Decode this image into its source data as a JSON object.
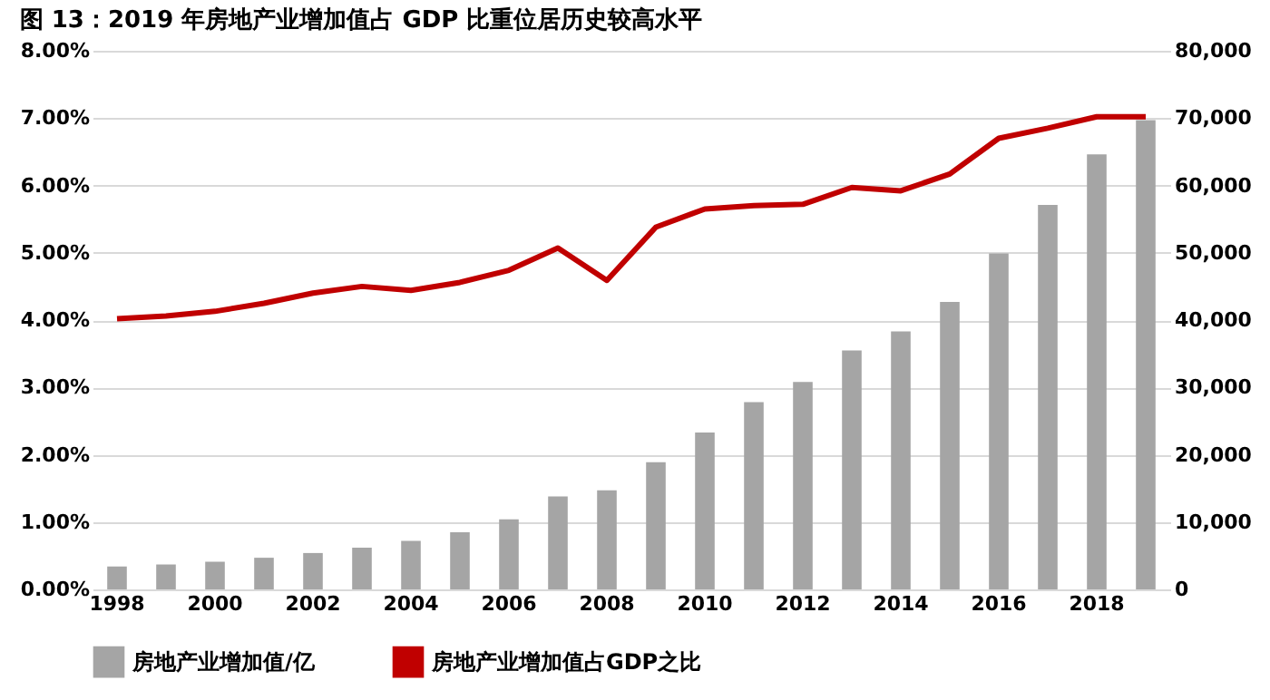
{
  "chart_data": {
    "type": "bar",
    "title": "图 13：2019 年房地产业增加值占 GDP 比重位居历史较高水平",
    "categories": [
      "1998",
      null,
      "2000",
      null,
      "2002",
      null,
      "2004",
      null,
      "2006",
      null,
      "2008",
      null,
      "2010",
      null,
      "2012",
      null,
      "2014",
      null,
      "2016",
      null,
      "2018",
      null
    ],
    "series": [
      {
        "name": "房地产业增加值/亿",
        "color": "#a5a5a5",
        "axis": "y2",
        "values": [
          3400,
          3700,
          4100,
          4700,
          5400,
          6200,
          7200,
          8500,
          10400,
          13800,
          14700,
          18900,
          23300,
          27800,
          30800,
          35500,
          38300,
          42700,
          49900,
          57100,
          64600,
          69700
        ]
      },
      {
        "name": "房地产业增加值占GDP之比",
        "type": "line",
        "color": "#c00000",
        "values": [
          4.02,
          4.06,
          4.13,
          4.25,
          4.4,
          4.5,
          4.44,
          4.56,
          4.74,
          5.07,
          4.59,
          5.38,
          5.65,
          5.7,
          5.72,
          5.97,
          5.92,
          6.17,
          6.7,
          6.85,
          7.02,
          7.02
        ]
      }
    ],
    "ylim": [
      0,
      8
    ],
    "yticks": [
      {
        "value": 0,
        "label": "0.00%"
      },
      {
        "value": 1,
        "label": "1.00%"
      },
      {
        "value": 2,
        "label": "2.00%"
      },
      {
        "value": 3,
        "label": "3.00%"
      },
      {
        "value": 4,
        "label": "4.00%"
      },
      {
        "value": 5,
        "label": "5.00%"
      },
      {
        "value": 6,
        "label": "6.00%"
      },
      {
        "value": 7,
        "label": "7.00%"
      },
      {
        "value": 8,
        "label": "8.00%"
      }
    ],
    "y2lim": [
      0,
      80000
    ],
    "y2ticks": [
      0,
      {
        "value": 10000,
        "label": "10,000"
      },
      {
        "value": 20000,
        "label": "20,000"
      },
      {
        "value": 30000,
        "label": "30,000"
      },
      {
        "value": 40000,
        "label": "40,000"
      },
      {
        "value": 50000,
        "label": "50,000"
      },
      {
        "value": 60000,
        "label": "60,000"
      },
      {
        "value": 70000,
        "label": "70,000"
      },
      {
        "value": 80000,
        "label": "80,000"
      }
    ],
    "grid": "y",
    "legend": "bottom",
    "line_style": "solid",
    "marker": "none"
  }
}
